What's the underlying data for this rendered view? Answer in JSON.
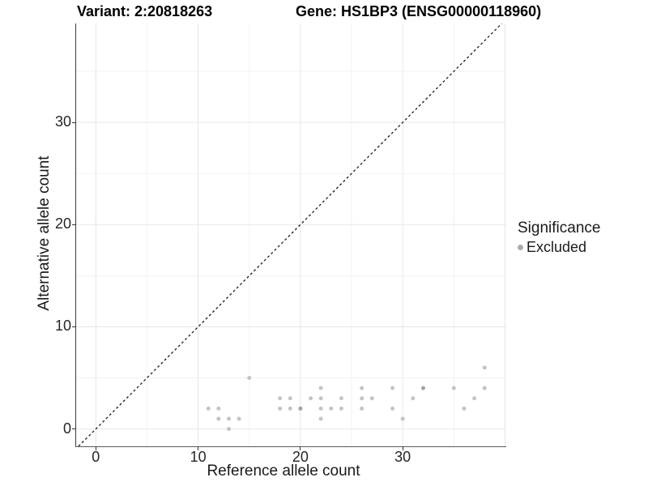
{
  "chart_data": {
    "type": "scatter",
    "title_left": "Variant: 2:20818263",
    "title_right": "Gene: HS1BP3 (ENSG00000118960)",
    "xlabel": "Reference allele count",
    "ylabel": "Alternative allele count",
    "xlim": [
      -2,
      40
    ],
    "ylim": [
      -1.7,
      39.7
    ],
    "xticks": [
      0,
      10,
      20,
      30
    ],
    "yticks": [
      0,
      10,
      20,
      30
    ],
    "grid": {
      "major_x": [
        0,
        10,
        20,
        30,
        40
      ],
      "minor_x": [
        5,
        15,
        25,
        35
      ],
      "major_y": [
        0,
        10,
        20,
        30
      ],
      "minor_y": [
        5,
        15,
        25,
        35
      ]
    },
    "identity_line": {
      "slope": 1,
      "intercept": 0,
      "style": "dashed"
    },
    "legend": {
      "title": "Significance",
      "position": "right",
      "items": [
        {
          "label": "Excluded",
          "color": "#ababab"
        }
      ]
    },
    "series": [
      {
        "name": "Excluded",
        "color": "#c4c4c4",
        "overlap_color": "#a2a2a2",
        "points": [
          {
            "x": 11,
            "y": 2,
            "n": 1
          },
          {
            "x": 12,
            "y": 1,
            "n": 1
          },
          {
            "x": 12,
            "y": 2,
            "n": 1
          },
          {
            "x": 13,
            "y": 0,
            "n": 1
          },
          {
            "x": 13,
            "y": 1,
            "n": 1
          },
          {
            "x": 14,
            "y": 1,
            "n": 1
          },
          {
            "x": 15,
            "y": 5,
            "n": 1
          },
          {
            "x": 18,
            "y": 2,
            "n": 1
          },
          {
            "x": 18,
            "y": 3,
            "n": 1
          },
          {
            "x": 19,
            "y": 2,
            "n": 1
          },
          {
            "x": 19,
            "y": 3,
            "n": 1
          },
          {
            "x": 20,
            "y": 2,
            "n": 2
          },
          {
            "x": 21,
            "y": 3,
            "n": 1
          },
          {
            "x": 22,
            "y": 1,
            "n": 1
          },
          {
            "x": 22,
            "y": 2,
            "n": 1
          },
          {
            "x": 22,
            "y": 3,
            "n": 1
          },
          {
            "x": 22,
            "y": 4,
            "n": 1
          },
          {
            "x": 23,
            "y": 2,
            "n": 1
          },
          {
            "x": 24,
            "y": 2,
            "n": 1
          },
          {
            "x": 24,
            "y": 3,
            "n": 1
          },
          {
            "x": 26,
            "y": 2,
            "n": 1
          },
          {
            "x": 26,
            "y": 3,
            "n": 1
          },
          {
            "x": 26,
            "y": 4,
            "n": 1
          },
          {
            "x": 27,
            "y": 3,
            "n": 1
          },
          {
            "x": 29,
            "y": 2,
            "n": 1
          },
          {
            "x": 29,
            "y": 4,
            "n": 1
          },
          {
            "x": 30,
            "y": 1,
            "n": 1
          },
          {
            "x": 31,
            "y": 3,
            "n": 1
          },
          {
            "x": 32,
            "y": 4,
            "n": 2
          },
          {
            "x": 35,
            "y": 4,
            "n": 1
          },
          {
            "x": 36,
            "y": 2,
            "n": 1
          },
          {
            "x": 37,
            "y": 3,
            "n": 1
          },
          {
            "x": 38,
            "y": 4,
            "n": 1
          },
          {
            "x": 38,
            "y": 6,
            "n": 1
          }
        ]
      }
    ],
    "colors": {
      "grid_major": "#e7e7e7",
      "grid_minor": "#f3f3f3",
      "axis_line": "#3a3a3a",
      "tick_mark": "#333333",
      "identity_line": "#1a1a1a",
      "background": "#ffffff"
    }
  }
}
